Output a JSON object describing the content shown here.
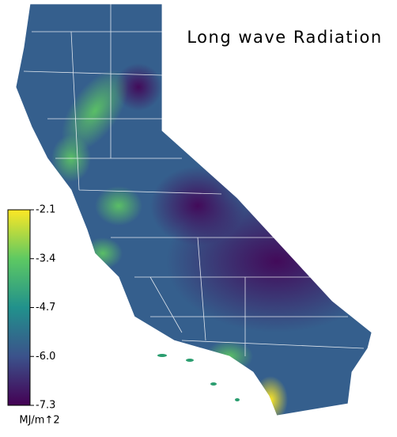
{
  "title": "Long wave Radiation",
  "colorbar": {
    "lim": [
      -7.3,
      -2.1
    ],
    "ticks": [
      -2.1,
      -3.4,
      -4.7,
      {
        "value": -6,
        "label": "-6.0"
      },
      -7.3
    ],
    "label": "MJ/m↑2",
    "colormap": [
      "#440154",
      "#3b528b",
      "#21918c",
      "#5ec962",
      "#fde725"
    ]
  }
}
